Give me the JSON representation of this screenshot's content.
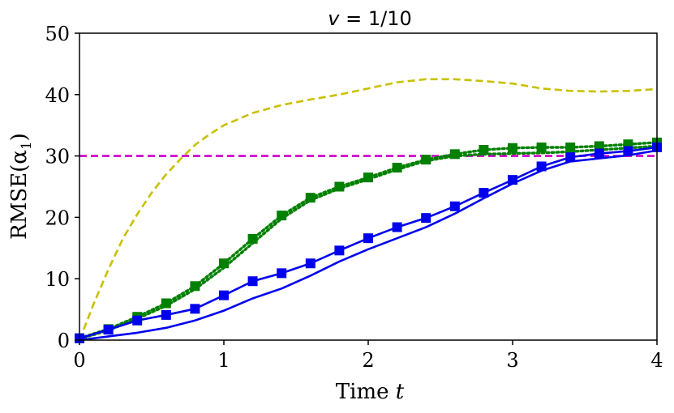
{
  "chart_data": {
    "type": "line",
    "title": "v = 1/10",
    "title_var": "v",
    "title_rest": " = 1/10",
    "xlabel": "Time ",
    "xlabel_var": "t",
    "ylabel": "RMSE(α",
    "ylabel_sub": "1",
    "ylabel_close": ")",
    "xlim": [
      0,
      4
    ],
    "ylim": [
      0,
      50
    ],
    "xticks": [
      0,
      1,
      2,
      3,
      4
    ],
    "yticks": [
      0,
      10,
      20,
      30,
      40,
      50
    ],
    "grid": false,
    "series": [
      {
        "name": "yellow-dashed",
        "color": "#c8c000",
        "style": "dashed",
        "marker": "none",
        "x": [
          0,
          0.1,
          0.2,
          0.3,
          0.4,
          0.5,
          0.6,
          0.7,
          0.8,
          0.9,
          1.0,
          1.2,
          1.4,
          1.6,
          1.8,
          2.0,
          2.2,
          2.4,
          2.6,
          2.8,
          3.0,
          3.2,
          3.4,
          3.6,
          3.8,
          4.0
        ],
        "y": [
          0,
          6,
          11.5,
          16.5,
          20.5,
          24,
          27,
          29.5,
          31.8,
          33.5,
          35,
          37,
          38.3,
          39.2,
          40,
          41,
          42,
          42.5,
          42.5,
          42.2,
          41.8,
          41,
          40.6,
          40.5,
          40.6,
          40.9
        ]
      },
      {
        "name": "magenta-threshold",
        "color": "#cc00cc",
        "style": "dashed",
        "marker": "none",
        "x": [
          0,
          4
        ],
        "y": [
          30,
          30
        ]
      },
      {
        "name": "green-dotted-squares",
        "color": "#008000",
        "style": "dotted",
        "marker": "square",
        "x": [
          0,
          0.2,
          0.4,
          0.6,
          0.8,
          1.0,
          1.2,
          1.4,
          1.6,
          1.8,
          2.0,
          2.2,
          2.4,
          2.6,
          2.8,
          3.0,
          3.2,
          3.4,
          3.6,
          3.8,
          4.0
        ],
        "y": [
          0.3,
          1.8,
          3.8,
          6.0,
          8.8,
          12.5,
          16.5,
          20.3,
          23.2,
          25.0,
          26.5,
          28.1,
          29.4,
          30.3,
          31.0,
          31.3,
          31.4,
          31.4,
          31.6,
          31.9,
          32.2
        ]
      },
      {
        "name": "green-dotted-thin",
        "color": "#008000",
        "style": "dotted",
        "marker": "none",
        "x": [
          0,
          0.2,
          0.4,
          0.6,
          0.8,
          1.0,
          1.2,
          1.4,
          1.6,
          1.8,
          2.0,
          2.2,
          2.4,
          2.6,
          2.8,
          3.0,
          3.2,
          3.4,
          3.6,
          3.8,
          4.0
        ],
        "y": [
          0.2,
          1.6,
          3.5,
          5.6,
          8.3,
          11.8,
          15.8,
          19.8,
          22.8,
          24.7,
          26.2,
          27.8,
          29.2,
          30.0,
          30.3,
          30.4,
          30.5,
          30.7,
          31.0,
          31.3,
          31.6
        ]
      },
      {
        "name": "blue-solid-squares",
        "color": "#0000ee",
        "style": "solid",
        "marker": "square",
        "x": [
          0,
          0.2,
          0.4,
          0.6,
          0.8,
          1.0,
          1.2,
          1.4,
          1.6,
          1.8,
          2.0,
          2.2,
          2.4,
          2.6,
          2.8,
          3.0,
          3.2,
          3.4,
          3.6,
          3.8,
          4.0
        ],
        "y": [
          0.3,
          1.7,
          3.2,
          4.1,
          5.1,
          7.3,
          9.6,
          10.9,
          12.5,
          14.6,
          16.6,
          18.4,
          19.9,
          21.8,
          24.0,
          26.1,
          28.3,
          29.8,
          30.4,
          30.8,
          31.4
        ]
      },
      {
        "name": "blue-solid-thin",
        "color": "#0000ee",
        "style": "solid",
        "marker": "none",
        "x": [
          0,
          0.2,
          0.4,
          0.6,
          0.8,
          1.0,
          1.2,
          1.4,
          1.6,
          1.8,
          2.0,
          2.2,
          2.4,
          2.6,
          2.8,
          3.0,
          3.2,
          3.4,
          3.6,
          3.8,
          4.0
        ],
        "y": [
          0,
          0.6,
          1.2,
          2.0,
          3.2,
          4.8,
          6.8,
          8.4,
          10.5,
          12.8,
          14.8,
          16.6,
          18.4,
          20.6,
          23.1,
          25.5,
          27.6,
          29.1,
          29.6,
          30.1,
          30.9
        ]
      }
    ]
  }
}
